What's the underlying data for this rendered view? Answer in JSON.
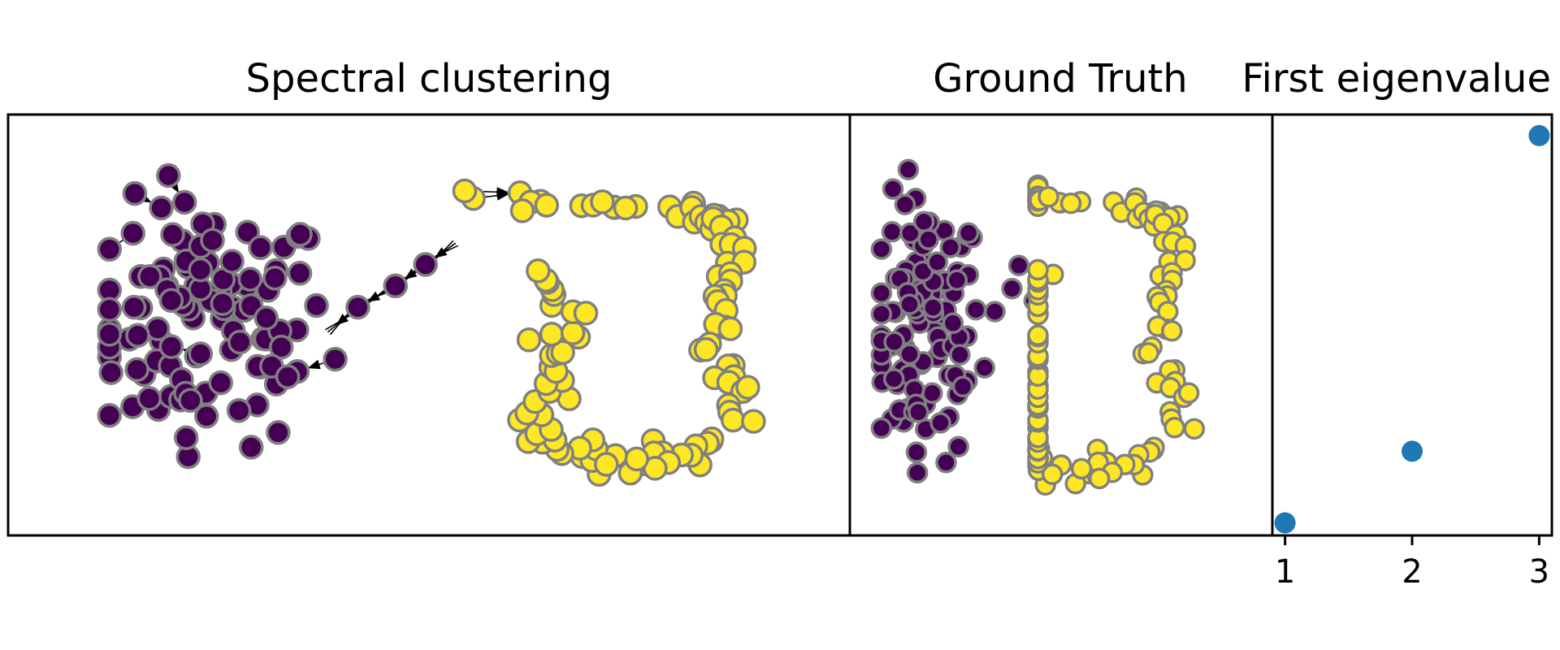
{
  "colors": {
    "cluster_a": "#440154",
    "cluster_b": "#fde725",
    "node_edge": "#808080",
    "eigen": "#1f77b4"
  },
  "chart_data": [
    {
      "type": "scatter",
      "title": "Spectral clustering",
      "grid": false,
      "axes_visible": false,
      "has_arrows": true,
      "series": [
        {
          "color": "#440154",
          "points": []
        },
        {
          "color": "#fde725",
          "points": []
        }
      ]
    },
    {
      "type": "scatter",
      "title": "Ground Truth",
      "grid": false,
      "axes_visible": false,
      "series": [
        {
          "color": "#440154",
          "points": []
        },
        {
          "color": "#fde725",
          "points": []
        }
      ]
    },
    {
      "type": "scatter",
      "title": "First eigenvalue",
      "grid": false,
      "x": [
        1,
        2,
        3
      ],
      "y": [
        0.03,
        0.2,
        0.95
      ],
      "xticks": [
        "1",
        "2",
        "3"
      ],
      "xlim": [
        0.9,
        3.1
      ],
      "ylim": [
        0,
        1
      ]
    }
  ]
}
